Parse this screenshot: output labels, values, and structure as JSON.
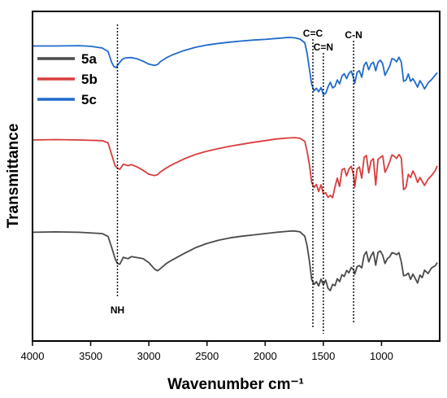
{
  "chart_data": {
    "type": "line",
    "title": "",
    "xlabel": "Wavenumber cm⁻¹",
    "ylabel": "Transmittance",
    "xlim": [
      4000,
      500
    ],
    "x_reversed": true,
    "x_ticks": [
      4000,
      3500,
      3000,
      2500,
      2000,
      1500,
      1000
    ],
    "y_ticks": [],
    "grid": false,
    "legend_position": "top-left",
    "series": [
      {
        "name": "5a",
        "color": "#4a4a4a",
        "points": [
          [
            4000,
            58.0
          ],
          [
            3800,
            58.1
          ],
          [
            3600,
            58.0
          ],
          [
            3400,
            57.6
          ],
          [
            3350,
            56.7
          ],
          [
            3320,
            53.5
          ],
          [
            3290,
            50.0
          ],
          [
            3270,
            48.5
          ],
          [
            3250,
            48.3
          ],
          [
            3220,
            50.4
          ],
          [
            3180,
            50.0
          ],
          [
            3150,
            50.6
          ],
          [
            3100,
            50.3
          ],
          [
            3050,
            50.0
          ],
          [
            3000,
            48.8
          ],
          [
            2950,
            46.8
          ],
          [
            2925,
            46.3
          ],
          [
            2900,
            47.0
          ],
          [
            2850,
            48.5
          ],
          [
            2800,
            49.6
          ],
          [
            2700,
            51.5
          ],
          [
            2600,
            53.3
          ],
          [
            2500,
            54.6
          ],
          [
            2400,
            55.6
          ],
          [
            2300,
            56.3
          ],
          [
            2200,
            56.8
          ],
          [
            2100,
            57.2
          ],
          [
            2000,
            57.6
          ],
          [
            1900,
            58.0
          ],
          [
            1800,
            58.3
          ],
          [
            1750,
            58.4
          ],
          [
            1700,
            58.1
          ],
          [
            1660,
            56.8
          ],
          [
            1640,
            54.0
          ],
          [
            1620,
            49.3
          ],
          [
            1600,
            43.7
          ],
          [
            1580,
            42.2
          ],
          [
            1560,
            43.0
          ],
          [
            1540,
            41.7
          ],
          [
            1520,
            43.8
          ],
          [
            1500,
            42.0
          ],
          [
            1480,
            43.5
          ],
          [
            1460,
            41.0
          ],
          [
            1440,
            40.3
          ],
          [
            1420,
            42.2
          ],
          [
            1400,
            41.8
          ],
          [
            1380,
            43.9
          ],
          [
            1360,
            43.0
          ],
          [
            1340,
            45.1
          ],
          [
            1320,
            44.6
          ],
          [
            1300,
            46.4
          ],
          [
            1280,
            45.7
          ],
          [
            1260,
            47.3
          ],
          [
            1240,
            46.6
          ],
          [
            1230,
            45.3
          ],
          [
            1210,
            47.6
          ],
          [
            1190,
            47.9
          ],
          [
            1170,
            47.2
          ],
          [
            1150,
            51.0
          ],
          [
            1130,
            52.1
          ],
          [
            1110,
            49.0
          ],
          [
            1090,
            50.8
          ],
          [
            1070,
            52.0
          ],
          [
            1050,
            48.0
          ],
          [
            1030,
            51.9
          ],
          [
            1010,
            52.3
          ],
          [
            990,
            51.0
          ],
          [
            970,
            48.5
          ],
          [
            950,
            50.0
          ],
          [
            930,
            50.5
          ],
          [
            910,
            51.8
          ],
          [
            890,
            51.6
          ],
          [
            870,
            51.2
          ],
          [
            850,
            51.8
          ],
          [
            830,
            49.0
          ],
          [
            810,
            44.8
          ],
          [
            790,
            45.0
          ],
          [
            770,
            45.6
          ],
          [
            750,
            43.7
          ],
          [
            730,
            45.3
          ],
          [
            710,
            44.0
          ],
          [
            690,
            42.6
          ],
          [
            670,
            45.0
          ],
          [
            650,
            44.2
          ],
          [
            630,
            46.5
          ],
          [
            600,
            45.5
          ],
          [
            570,
            47.2
          ],
          [
            540,
            47.8
          ],
          [
            520,
            48.8
          ]
        ]
      },
      {
        "name": "5b",
        "color": "#d83d3d",
        "points": [
          [
            4000,
            86.0
          ],
          [
            3800,
            86.1
          ],
          [
            3600,
            86.0
          ],
          [
            3400,
            85.8
          ],
          [
            3350,
            85.1
          ],
          [
            3320,
            81.6
          ],
          [
            3290,
            78.2
          ],
          [
            3270,
            77.5
          ],
          [
            3250,
            77.1
          ],
          [
            3220,
            78.6
          ],
          [
            3180,
            78.2
          ],
          [
            3150,
            78.5
          ],
          [
            3100,
            77.8
          ],
          [
            3050,
            76.8
          ],
          [
            3000,
            75.6
          ],
          [
            2950,
            75.2
          ],
          [
            2925,
            75.5
          ],
          [
            2900,
            76.3
          ],
          [
            2850,
            77.5
          ],
          [
            2800,
            78.5
          ],
          [
            2700,
            80.2
          ],
          [
            2600,
            81.6
          ],
          [
            2500,
            82.6
          ],
          [
            2400,
            83.4
          ],
          [
            2300,
            84.1
          ],
          [
            2200,
            84.7
          ],
          [
            2100,
            85.3
          ],
          [
            2000,
            85.8
          ],
          [
            1900,
            86.3
          ],
          [
            1800,
            86.6
          ],
          [
            1750,
            86.7
          ],
          [
            1700,
            86.5
          ],
          [
            1660,
            85.6
          ],
          [
            1640,
            82.6
          ],
          [
            1620,
            78.5
          ],
          [
            1600,
            73.1
          ],
          [
            1580,
            71.6
          ],
          [
            1560,
            72.5
          ],
          [
            1540,
            70.3
          ],
          [
            1520,
            72.4
          ],
          [
            1500,
            69.7
          ],
          [
            1480,
            70.0
          ],
          [
            1460,
            68.6
          ],
          [
            1440,
            69.2
          ],
          [
            1420,
            68.5
          ],
          [
            1400,
            71.8
          ],
          [
            1380,
            74.4
          ],
          [
            1360,
            71.9
          ],
          [
            1340,
            76.9
          ],
          [
            1320,
            77.4
          ],
          [
            1300,
            75.1
          ],
          [
            1280,
            77.2
          ],
          [
            1260,
            78.0
          ],
          [
            1240,
            75.3
          ],
          [
            1230,
            71.7
          ],
          [
            1210,
            77.2
          ],
          [
            1190,
            77.8
          ],
          [
            1170,
            74.4
          ],
          [
            1150,
            80.7
          ],
          [
            1130,
            81.3
          ],
          [
            1110,
            76.0
          ],
          [
            1090,
            79.7
          ],
          [
            1070,
            80.3
          ],
          [
            1050,
            72.3
          ],
          [
            1030,
            80.1
          ],
          [
            1010,
            80.7
          ],
          [
            990,
            81.2
          ],
          [
            970,
            76.2
          ],
          [
            950,
            77.6
          ],
          [
            930,
            79.3
          ],
          [
            910,
            81.5
          ],
          [
            890,
            81.0
          ],
          [
            870,
            80.4
          ],
          [
            850,
            81.6
          ],
          [
            830,
            80.5
          ],
          [
            810,
            70.9
          ],
          [
            790,
            71.6
          ],
          [
            770,
            75.6
          ],
          [
            750,
            74.6
          ],
          [
            730,
            76.6
          ],
          [
            710,
            75.2
          ],
          [
            690,
            73.1
          ],
          [
            670,
            74.6
          ],
          [
            650,
            73.4
          ],
          [
            630,
            72.2
          ],
          [
            600,
            74.1
          ],
          [
            570,
            75.2
          ],
          [
            540,
            76.6
          ],
          [
            520,
            78.1
          ]
        ]
      },
      {
        "name": "5c",
        "color": "#1f6bcc",
        "points": [
          [
            4000,
            114.5
          ],
          [
            3800,
            114.5
          ],
          [
            3600,
            114.6
          ],
          [
            3500,
            114.4
          ],
          [
            3400,
            113.9
          ],
          [
            3350,
            112.8
          ],
          [
            3320,
            109.6
          ],
          [
            3300,
            108.2
          ],
          [
            3280,
            108.0
          ],
          [
            3260,
            109.1
          ],
          [
            3230,
            110.4
          ],
          [
            3200,
            110.9
          ],
          [
            3150,
            111.0
          ],
          [
            3100,
            110.6
          ],
          [
            3050,
            109.9
          ],
          [
            3000,
            109.0
          ],
          [
            2950,
            108.6
          ],
          [
            2925,
            108.9
          ],
          [
            2900,
            109.8
          ],
          [
            2850,
            110.9
          ],
          [
            2800,
            111.8
          ],
          [
            2700,
            113.1
          ],
          [
            2600,
            114.1
          ],
          [
            2500,
            114.8
          ],
          [
            2400,
            115.3
          ],
          [
            2300,
            115.7
          ],
          [
            2200,
            116.0
          ],
          [
            2100,
            116.3
          ],
          [
            2000,
            116.5
          ],
          [
            1900,
            116.8
          ],
          [
            1800,
            117.1
          ],
          [
            1750,
            117.0
          ],
          [
            1700,
            116.6
          ],
          [
            1660,
            115.5
          ],
          [
            1640,
            112.4
          ],
          [
            1620,
            107.5
          ],
          [
            1600,
            102.9
          ],
          [
            1580,
            100.9
          ],
          [
            1560,
            101.7
          ],
          [
            1540,
            100.6
          ],
          [
            1520,
            101.9
          ],
          [
            1500,
            99.8
          ],
          [
            1480,
            100.1
          ],
          [
            1460,
            102.1
          ],
          [
            1440,
            103.5
          ],
          [
            1420,
            101.8
          ],
          [
            1400,
            102.3
          ],
          [
            1380,
            104.2
          ],
          [
            1360,
            103.0
          ],
          [
            1340,
            105.4
          ],
          [
            1320,
            106.1
          ],
          [
            1300,
            104.6
          ],
          [
            1280,
            106.2
          ],
          [
            1260,
            106.9
          ],
          [
            1240,
            104.7
          ],
          [
            1230,
            103.2
          ],
          [
            1210,
            106.5
          ],
          [
            1190,
            107.0
          ],
          [
            1170,
            105.0
          ],
          [
            1150,
            108.7
          ],
          [
            1130,
            109.6
          ],
          [
            1110,
            107.3
          ],
          [
            1090,
            109.0
          ],
          [
            1070,
            109.6
          ],
          [
            1050,
            107.0
          ],
          [
            1030,
            109.5
          ],
          [
            1010,
            110.2
          ],
          [
            990,
            109.1
          ],
          [
            970,
            105.6
          ],
          [
            950,
            107.0
          ],
          [
            930,
            108.3
          ],
          [
            910,
            110.7
          ],
          [
            890,
            110.4
          ],
          [
            870,
            109.7
          ],
          [
            850,
            111.1
          ],
          [
            830,
            109.6
          ],
          [
            810,
            103.8
          ],
          [
            790,
            104.1
          ],
          [
            770,
            106.0
          ],
          [
            750,
            103.8
          ],
          [
            730,
            104.6
          ],
          [
            710,
            103.4
          ],
          [
            690,
            102.0
          ],
          [
            670,
            104.0
          ],
          [
            650,
            102.9
          ],
          [
            630,
            101.5
          ],
          [
            600,
            103.3
          ],
          [
            570,
            104.3
          ],
          [
            540,
            105.6
          ],
          [
            520,
            106.4
          ]
        ]
      }
    ],
    "annotations": [
      {
        "label": "NH",
        "x": 3270
      },
      {
        "label": "C=C",
        "x": 1590
      },
      {
        "label": "C=N",
        "x": 1500
      },
      {
        "label": "C-N",
        "x": 1240
      }
    ]
  }
}
